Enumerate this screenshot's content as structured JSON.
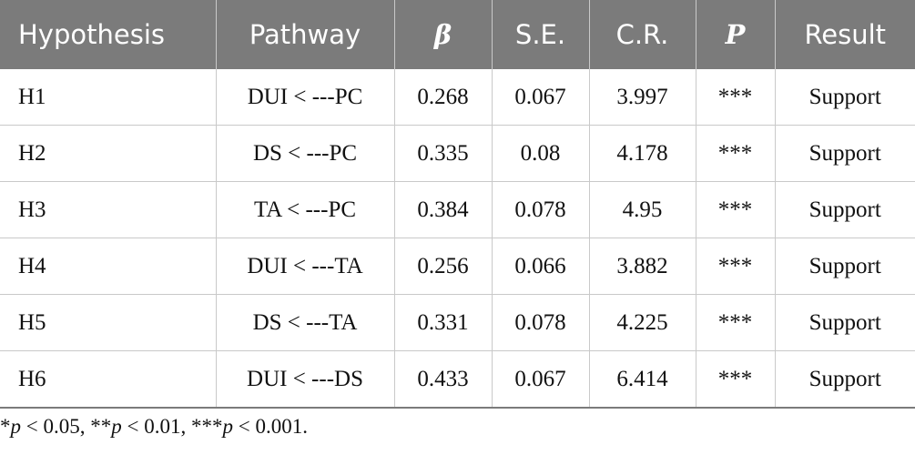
{
  "table": {
    "headers": {
      "hypothesis": "Hypothesis",
      "pathway": "Pathway",
      "beta": "β",
      "se": "S.E.",
      "cr": "C.R.",
      "p": "P",
      "result": "Result"
    },
    "rows": [
      {
        "hypothesis": "H1",
        "pathway": "DUI < ---PC",
        "beta": "0.268",
        "se": "0.067",
        "cr": "3.997",
        "p": "***",
        "result": "Support"
      },
      {
        "hypothesis": "H2",
        "pathway": "DS < ---PC",
        "beta": "0.335",
        "se": "0.08",
        "cr": "4.178",
        "p": "***",
        "result": "Support"
      },
      {
        "hypothesis": "H3",
        "pathway": "TA < ---PC",
        "beta": "0.384",
        "se": "0.078",
        "cr": "4.95",
        "p": "***",
        "result": "Support"
      },
      {
        "hypothesis": "H4",
        "pathway": "DUI < ---TA",
        "beta": "0.256",
        "se": "0.066",
        "cr": "3.882",
        "p": "***",
        "result": "Support"
      },
      {
        "hypothesis": "H5",
        "pathway": "DS < ---TA",
        "beta": "0.331",
        "se": "0.078",
        "cr": "4.225",
        "p": "***",
        "result": "Support"
      },
      {
        "hypothesis": "H6",
        "pathway": "DUI < ---DS",
        "beta": "0.433",
        "se": "0.067",
        "cr": "6.414",
        "p": "***",
        "result": "Support"
      }
    ]
  },
  "footnote": {
    "s1": "*",
    "p1": "p",
    "t1": " < 0.05, **",
    "p2": "p",
    "t2": " < 0.01, ***",
    "p3": "p",
    "t3": " < 0.001."
  }
}
